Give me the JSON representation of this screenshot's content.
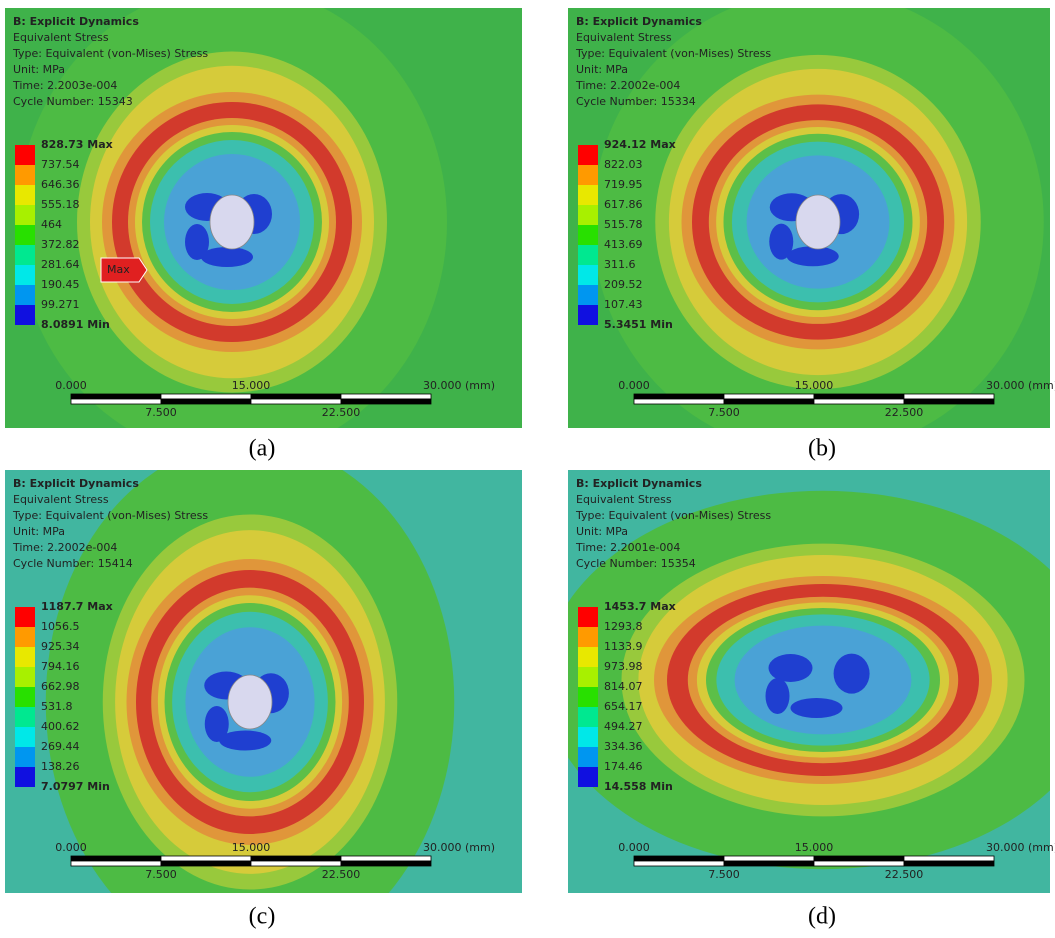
{
  "panels": [
    {
      "header": {
        "title": "B: Explicit Dynamics",
        "result": "Equivalent Stress",
        "type": "Type: Equivalent (von-Mises) Stress",
        "unit": "Unit: MPa",
        "time": "Time: 2.2003e-004",
        "cycle": "Cycle Number: 15343"
      },
      "legend": [
        "828.73 Max",
        "737.54",
        "646.36",
        "555.18",
        "464",
        "372.82",
        "281.64",
        "190.45",
        "99.271",
        "8.0891 Min"
      ],
      "probe": "Max",
      "scale": {
        "top": [
          "0.000",
          "15.000",
          "30.000 (mm)"
        ],
        "bottom": [
          "7.500",
          "22.500"
        ]
      },
      "caption": "(a)"
    },
    {
      "header": {
        "title": "B: Explicit Dynamics",
        "result": "Equivalent Stress",
        "type": "Type: Equivalent (von-Mises) Stress",
        "unit": "Unit: MPa",
        "time": "Time: 2.2002e-004",
        "cycle": "Cycle Number: 15334"
      },
      "legend": [
        "924.12 Max",
        "822.03",
        "719.95",
        "617.86",
        "515.78",
        "413.69",
        "311.6",
        "209.52",
        "107.43",
        "5.3451 Min"
      ],
      "scale": {
        "top": [
          "0.000",
          "15.000",
          "30.000 (mm)"
        ],
        "bottom": [
          "7.500",
          "22.500"
        ]
      },
      "caption": "(b)"
    },
    {
      "header": {
        "title": "B: Explicit Dynamics",
        "result": "Equivalent Stress",
        "type": "Type: Equivalent (von-Mises) Stress",
        "unit": "Unit: MPa",
        "time": "Time: 2.2002e-004",
        "cycle": "Cycle Number: 15414"
      },
      "legend": [
        "1187.7 Max",
        "1056.5",
        "925.34",
        "794.16",
        "662.98",
        "531.8",
        "400.62",
        "269.44",
        "138.26",
        "7.0797 Min"
      ],
      "scale": {
        "top": [
          "0.000",
          "15.000",
          "30.000 (mm)"
        ],
        "bottom": [
          "7.500",
          "22.500"
        ]
      },
      "caption": "(c)"
    },
    {
      "header": {
        "title": "B: Explicit Dynamics",
        "result": "Equivalent Stress",
        "type": "Type: Equivalent (von-Mises) Stress",
        "unit": "Unit: MPa",
        "time": "Time: 2.2001e-004",
        "cycle": "Cycle Number: 15354"
      },
      "legend": [
        "1453.7 Max",
        "1293.8",
        "1133.9",
        "973.98",
        "814.07",
        "654.17",
        "494.27",
        "334.36",
        "174.46",
        "14.558 Min"
      ],
      "scale": {
        "top": [
          "0.000",
          "15.000",
          "30.000 (mm)"
        ],
        "bottom": [
          "7.500",
          "22.500"
        ]
      },
      "caption": "(d)"
    }
  ]
}
